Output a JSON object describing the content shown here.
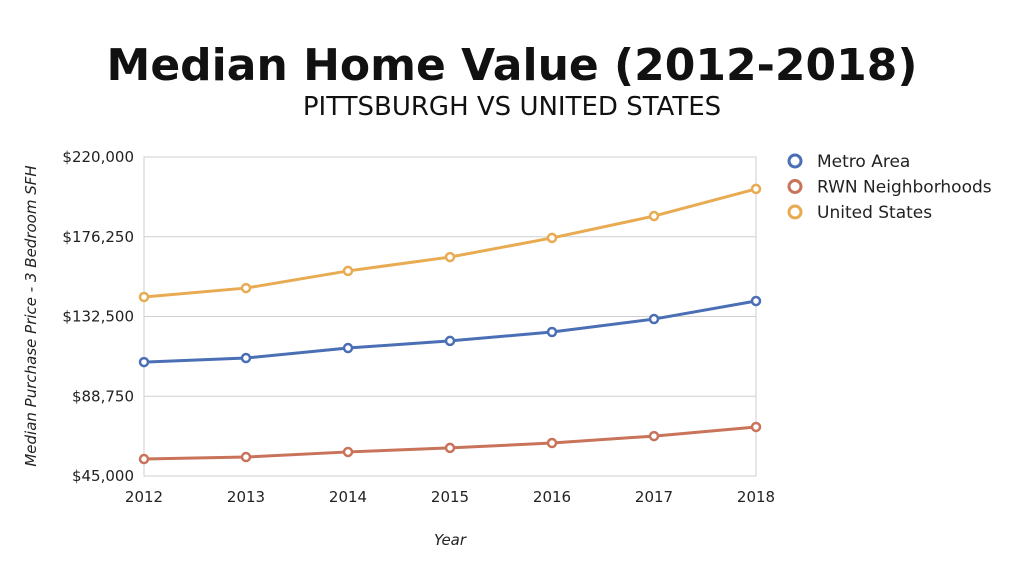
{
  "chart_data": {
    "type": "line",
    "title": "Median Home Value (2012-2018)",
    "subtitle": "PITTSBURGH VS UNITED STATES",
    "xlabel": "Year",
    "ylabel": "Median Purchase Price - 3 Bedroom SFH",
    "categories": [
      "2012",
      "2013",
      "2014",
      "2015",
      "2016",
      "2017",
      "2018"
    ],
    "ylim": [
      45000,
      220000
    ],
    "yticks": [
      45000,
      88750,
      132500,
      176250,
      220000
    ],
    "ytick_labels": [
      "$45,000",
      "$88,750",
      "$132,500",
      "$176,250",
      "$220,000"
    ],
    "grid": true,
    "legend_position": "right",
    "series": [
      {
        "name": "Metro Area",
        "color": "#4a6fb5",
        "values": [
          107500,
          109700,
          115200,
          119100,
          124000,
          131100,
          141000
        ]
      },
      {
        "name": "RWN Neighborhoods",
        "color": "#c8735a",
        "values": [
          54300,
          55400,
          58200,
          60400,
          63100,
          66900,
          71900
        ]
      },
      {
        "name": "United States",
        "color": "#e8ab52",
        "values": [
          143200,
          148100,
          157500,
          165100,
          175600,
          187600,
          202500
        ]
      }
    ]
  }
}
